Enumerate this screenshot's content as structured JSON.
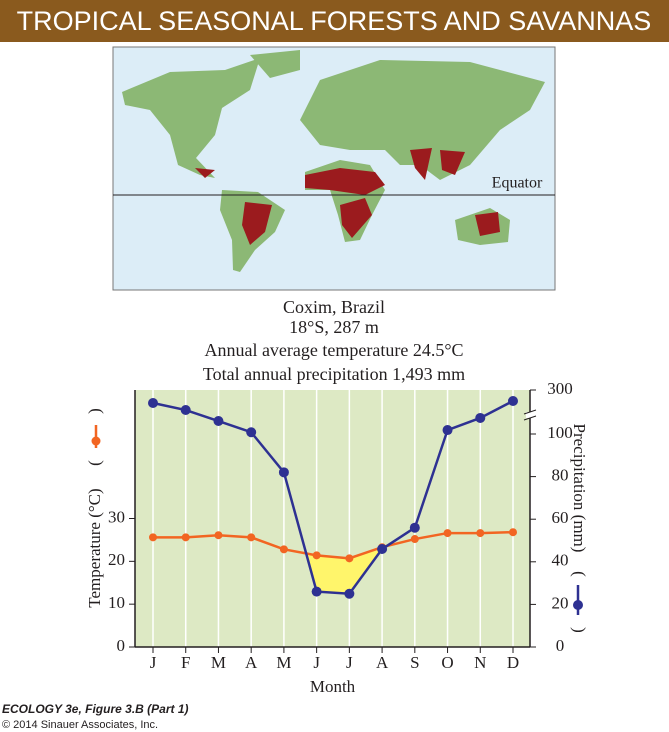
{
  "header": {
    "title": "TROPICAL SEASONAL FORESTS AND SAVANNAS"
  },
  "map": {
    "label": "Equator"
  },
  "chart_data": {
    "type": "line",
    "subtitle": [
      "Coxim, Brazil",
      "18°S, 287 m",
      "Annual average temperature 24.5°C",
      "Total annual precipitation 1,493 mm"
    ],
    "xlabel": "Month",
    "ylabel": "Temperature (°C)",
    "y2label": "Precipitation (mm)",
    "legend_brackets": [
      "(",
      ")"
    ],
    "categories": [
      "J",
      "F",
      "M",
      "A",
      "M",
      "J",
      "J",
      "A",
      "S",
      "O",
      "N",
      "D"
    ],
    "series": [
      {
        "name": "Temperature (°C)",
        "color": "#f26522",
        "axis": "y",
        "values": [
          25.6,
          25.6,
          26.1,
          25.6,
          22.8,
          21.4,
          20.7,
          23.3,
          25.2,
          26.6,
          26.6,
          26.8
        ]
      },
      {
        "name": "Precipitation (mm)",
        "color": "#2e3192",
        "axis": "y2",
        "values": [
          241,
          209,
          159,
          108,
          82,
          26,
          25,
          46,
          56,
          118,
          173,
          250
        ]
      }
    ],
    "ylim": [
      0,
      60
    ],
    "yticks": [
      0,
      10,
      20,
      30
    ],
    "y2lim": [
      0,
      300
    ],
    "y2ticks": [
      0,
      20,
      40,
      60,
      80,
      100,
      300
    ],
    "dry_season_fill": "#fff56b",
    "grid": true
  },
  "credit": {
    "figure": "ECOLOGY 3e, Figure 3.B (Part 1)",
    "copyright": "© 2014 Sinauer Associates, Inc."
  }
}
